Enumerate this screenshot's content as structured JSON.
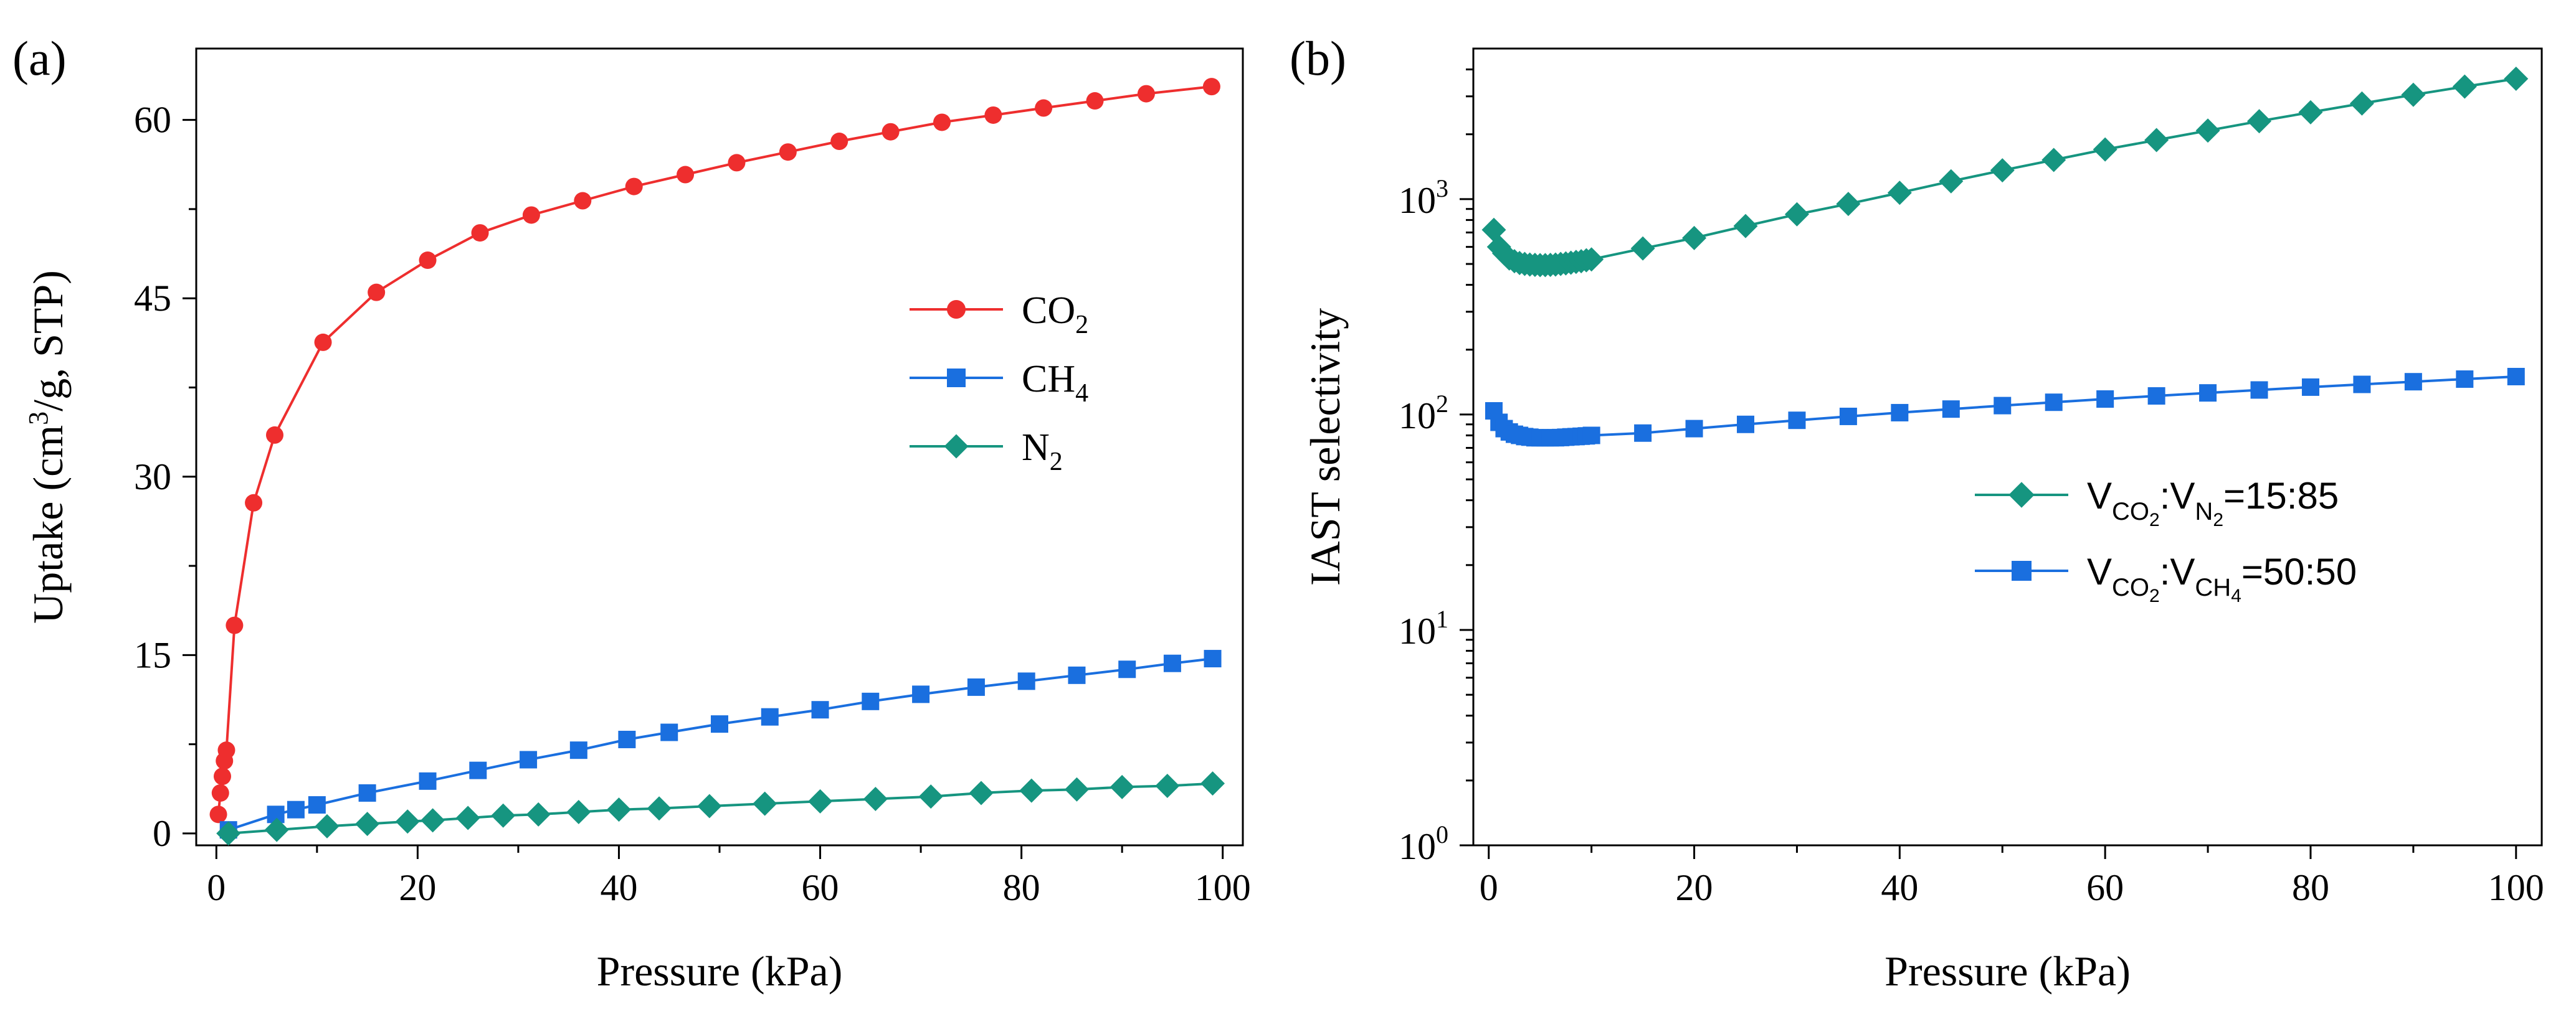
{
  "chart_data": [
    {
      "type": "line",
      "panel_label": "(a)",
      "title": "",
      "xlabel": "Pressure (kPa)",
      "ylabel": {
        "pre": "Uptake (cm",
        "sup": "3",
        "post": "/g, STP)"
      },
      "xlim": [
        -2,
        102
      ],
      "ylim": [
        -1,
        66
      ],
      "xticks": [
        0,
        20,
        40,
        60,
        80,
        100
      ],
      "xtick_labels": [
        "0",
        "20",
        "40",
        "60",
        "80",
        "100"
      ],
      "yticks": [
        0,
        15,
        30,
        45,
        60
      ],
      "ytick_labels": [
        "0",
        "15",
        "30",
        "45",
        "60"
      ],
      "grid": false,
      "legend_position": "center-right",
      "series": [
        {
          "name": "CO2",
          "label_main": "CO",
          "label_sub": "2",
          "color": "#ee2e2e",
          "marker": "circle",
          "x": [
            0.2,
            0.4,
            0.6,
            0.8,
            1.0,
            1.8,
            3.7,
            5.8,
            10.6,
            15.9,
            21.0,
            26.2,
            31.3,
            36.4,
            41.5,
            46.6,
            51.7,
            56.8,
            61.9,
            67.0,
            72.1,
            77.2,
            82.2,
            87.3,
            92.4,
            98.9
          ],
          "y": [
            1.6,
            3.4,
            4.8,
            6.1,
            7.0,
            17.5,
            27.8,
            33.5,
            41.3,
            45.5,
            48.2,
            50.5,
            52.0,
            53.2,
            54.4,
            55.4,
            56.4,
            57.3,
            58.2,
            59.0,
            59.8,
            60.4,
            61.0,
            61.6,
            62.2,
            62.8
          ]
        },
        {
          "name": "CH4",
          "label_main": "CH",
          "label_sub": "4",
          "color": "#1a6fdf",
          "marker": "square",
          "x": [
            1.2,
            5.9,
            7.9,
            10.0,
            15.0,
            21.0,
            26.0,
            31.0,
            36.0,
            40.8,
            45.0,
            50.0,
            55.0,
            60.0,
            65.0,
            70.0,
            75.5,
            80.5,
            85.5,
            90.5,
            95.0,
            99.0
          ],
          "y": [
            0.3,
            1.6,
            2.0,
            2.4,
            3.4,
            4.4,
            5.3,
            6.2,
            7.0,
            7.9,
            8.5,
            9.2,
            9.8,
            10.4,
            11.1,
            11.7,
            12.3,
            12.8,
            13.3,
            13.8,
            14.3,
            14.7
          ]
        },
        {
          "name": "N2",
          "label_main": "N",
          "label_sub": "2",
          "color": "#169580",
          "marker": "diamond",
          "x": [
            1.2,
            6.0,
            11.0,
            15.0,
            19.0,
            21.5,
            25.0,
            28.5,
            32.0,
            36.0,
            40.0,
            44.0,
            49.0,
            54.5,
            60.0,
            65.5,
            71.0,
            76.0,
            81.0,
            85.5,
            90.0,
            94.5,
            99.0
          ],
          "y": [
            0.0,
            0.3,
            0.6,
            0.8,
            1.0,
            1.1,
            1.3,
            1.5,
            1.6,
            1.8,
            2.0,
            2.1,
            2.3,
            2.5,
            2.7,
            2.9,
            3.1,
            3.4,
            3.6,
            3.7,
            3.9,
            4.0,
            4.2
          ]
        }
      ]
    },
    {
      "type": "line",
      "y_scale": "log",
      "panel_label": "(b)",
      "title": "",
      "xlabel": "Pressure (kPa)",
      "ylabel": "IAST selectivity",
      "xlim": [
        -1.5,
        102.5
      ],
      "ylim": [
        1,
        5000
      ],
      "xticks": [
        0,
        20,
        40,
        60,
        80,
        100
      ],
      "xtick_labels": [
        "0",
        "20",
        "40",
        "60",
        "80",
        "100"
      ],
      "yticks": [
        1,
        10,
        100,
        1000
      ],
      "ytick_exponents": [
        "0",
        "1",
        "2",
        "3"
      ],
      "ytick_base": "10",
      "grid": false,
      "legend_position": "center-right",
      "series": [
        {
          "name": "VCO2:VN2=15:85",
          "label_parts": [
            {
              "t": "V"
            },
            {
              "sub": "CO"
            },
            {
              "subsub": "2"
            },
            {
              "t": ":V"
            },
            {
              "sub": "N"
            },
            {
              "subsub": "2"
            },
            {
              "t": "=15:85"
            }
          ],
          "color": "#169580",
          "marker": "diamond",
          "x": [
            0.5,
            1.0,
            1.5,
            2.0,
            2.5,
            3.0,
            3.5,
            4.0,
            4.5,
            5.0,
            5.5,
            6.0,
            6.5,
            7.0,
            7.5,
            8.0,
            8.5,
            9.0,
            9.5,
            10.0,
            15.0,
            20.0,
            25.0,
            30.0,
            35.0,
            40.0,
            45.0,
            50.0,
            55.0,
            60.0,
            65.0,
            70.0,
            75.0,
            80.0,
            85.0,
            90.0,
            95.0,
            100.0
          ],
          "y": [
            720,
            600,
            560,
            530,
            515,
            505,
            500,
            497,
            495,
            494,
            494,
            495,
            497,
            500,
            503,
            507,
            511,
            515,
            520,
            525,
            590,
            660,
            750,
            850,
            950,
            1070,
            1210,
            1360,
            1520,
            1700,
            1880,
            2080,
            2300,
            2530,
            2780,
            3050,
            3330,
            3620
          ]
        },
        {
          "name": "VCO2:VCH4=50:50",
          "label_parts": [
            {
              "t": "V"
            },
            {
              "sub": "CO"
            },
            {
              "subsub": "2"
            },
            {
              "t": ":V"
            },
            {
              "sub": "CH"
            },
            {
              "subsub": "4"
            },
            {
              "t": "=50:50"
            }
          ],
          "color": "#1a6fdf",
          "marker": "square",
          "x": [
            0.5,
            1.0,
            1.5,
            2.0,
            2.5,
            3.0,
            3.5,
            4.0,
            4.5,
            5.0,
            5.5,
            6.0,
            6.5,
            7.0,
            7.5,
            8.0,
            8.5,
            9.0,
            9.5,
            10.0,
            15.0,
            20.0,
            25.0,
            30.0,
            35.0,
            40.0,
            45.0,
            50.0,
            55.0,
            60.0,
            65.0,
            70.0,
            75.0,
            80.0,
            85.0,
            90.0,
            95.0,
            100.0
          ],
          "y": [
            104,
            92,
            86,
            83,
            81,
            80,
            79,
            78.5,
            78,
            78,
            78,
            78,
            78,
            78.2,
            78.5,
            78.8,
            79,
            79.3,
            79.6,
            80,
            82,
            86,
            90,
            94,
            98,
            102,
            106,
            110,
            114,
            118,
            122,
            126,
            130,
            134,
            138,
            142,
            146,
            150
          ]
        }
      ]
    }
  ]
}
